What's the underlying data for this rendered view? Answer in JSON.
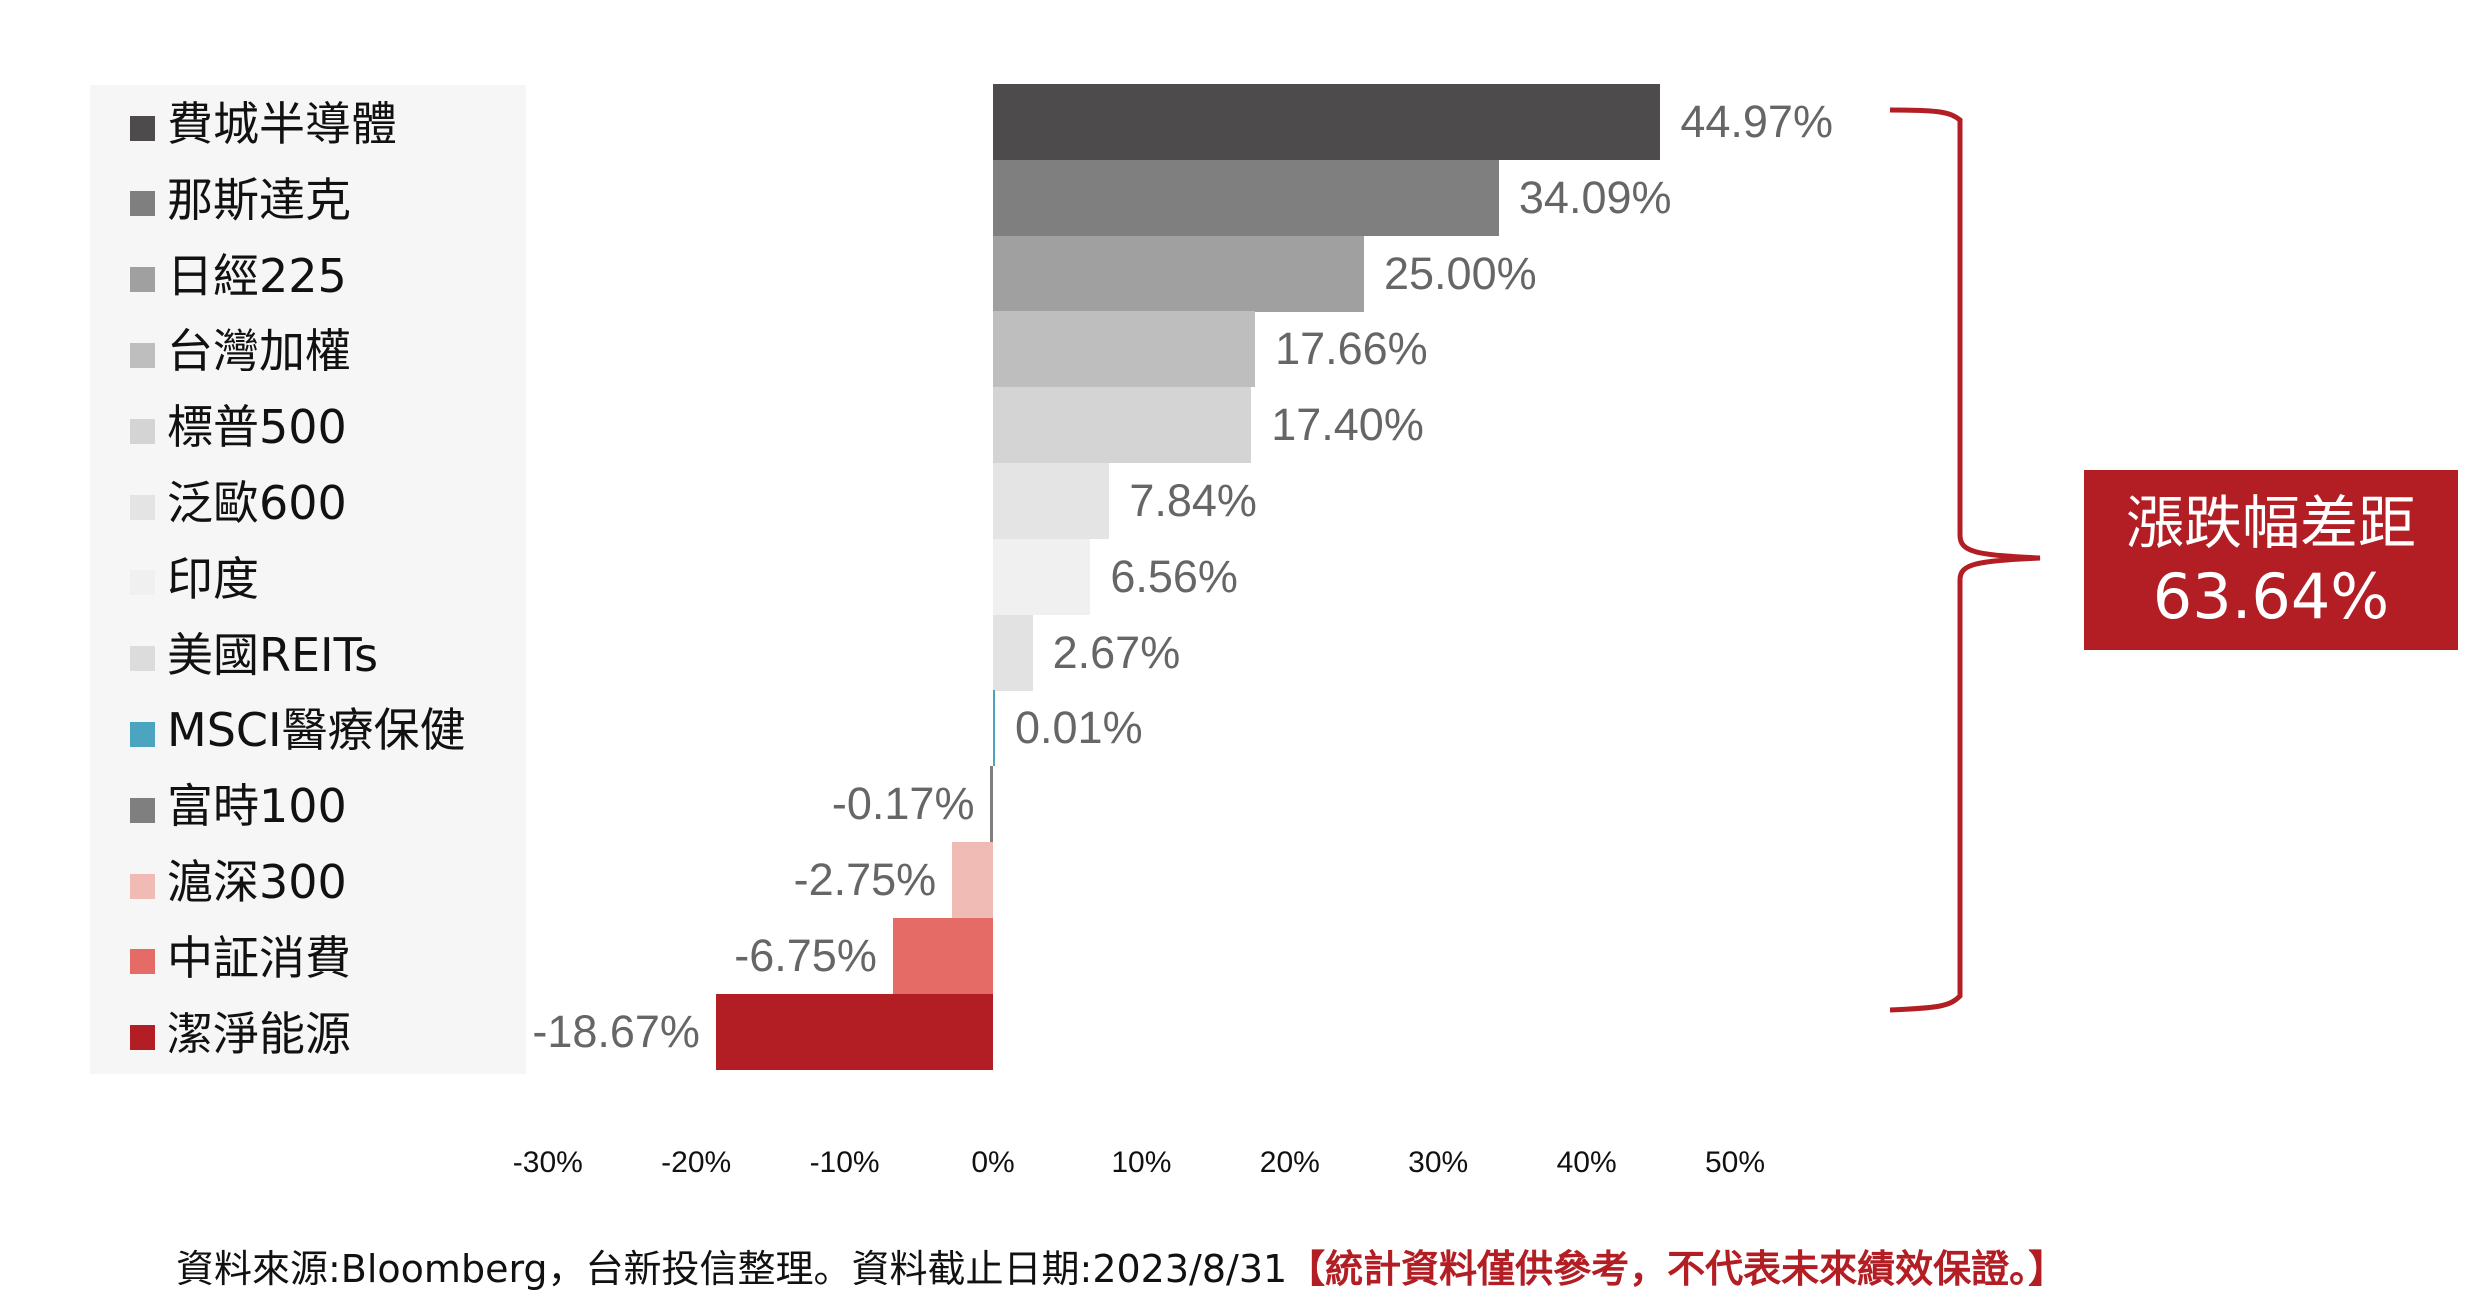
{
  "chart_data": {
    "type": "bar",
    "orientation": "horizontal",
    "title": "",
    "xlabel": "",
    "ylabel": "",
    "xlim": [
      -30,
      50
    ],
    "x_ticks": [
      "-30%",
      "-20%",
      "-10%",
      "0%",
      "10%",
      "20%",
      "30%",
      "40%",
      "50%"
    ],
    "grid": false,
    "legend_position": "left",
    "categories": [
      "費城半導體",
      "那斯達克",
      "日經225",
      "台灣加權",
      "標普500",
      "泛歐600",
      "印度",
      "美國REITs",
      "MSCI醫療保健",
      "富時100",
      "滬深300",
      "中証消費",
      "潔淨能源"
    ],
    "values": [
      44.97,
      34.09,
      25.0,
      17.66,
      17.4,
      7.84,
      6.56,
      2.67,
      0.01,
      -0.17,
      -2.75,
      -6.75,
      -18.67
    ],
    "value_labels": [
      "44.97%",
      "34.09%",
      "25.00%",
      "17.66%",
      "17.40%",
      "7.84%",
      "6.56%",
      "2.67%",
      "0.01%",
      "-0.17%",
      "-2.75%",
      "-6.75%",
      "-18.67%"
    ],
    "colors": [
      "#4d4b4c",
      "#7f7f7f",
      "#a0a0a0",
      "#bebebe",
      "#d4d4d4",
      "#e4e4e4",
      "#f0f0f0",
      "#e2e2e2",
      "#4ba5c1",
      "#7f7f7f",
      "#f0bab5",
      "#e56c66",
      "#b31d24"
    ],
    "annotations": [
      {
        "type": "brace",
        "text": "漲跌幅差距 63.64%",
        "spans": [
          "費城半導體",
          "潔淨能源"
        ]
      }
    ]
  },
  "legend": {
    "items": [
      {
        "label": "費城半導體",
        "color": "#4d4b4c"
      },
      {
        "label": "那斯達克",
        "color": "#7f7f7f"
      },
      {
        "label": "日經225",
        "color": "#a0a0a0"
      },
      {
        "label": "台灣加權",
        "color": "#bebebe"
      },
      {
        "label": "標普500",
        "color": "#d4d4d4"
      },
      {
        "label": "泛歐600",
        "color": "#e4e4e4"
      },
      {
        "label": "印度",
        "color": "#f0f0f0"
      },
      {
        "label": "美國REITs",
        "color": "#dcdcdc"
      },
      {
        "label": "MSCI醫療保健",
        "color": "#4ba5c1"
      },
      {
        "label": "富時100",
        "color": "#7f7f7f"
      },
      {
        "label": "滬深300",
        "color": "#f0bab5"
      },
      {
        "label": "中証消費",
        "color": "#e56c66"
      },
      {
        "label": "潔淨能源",
        "color": "#b31d24"
      }
    ]
  },
  "callout": {
    "title": "漲跌幅差距",
    "value": "63.64%",
    "color": "#b31d24"
  },
  "footer": {
    "source": "資料來源:Bloomberg，台新投信整理。資料截止日期:2023/8/31",
    "disclaimer": "【統計資料僅供參考，不代表未來績效保證。】"
  }
}
